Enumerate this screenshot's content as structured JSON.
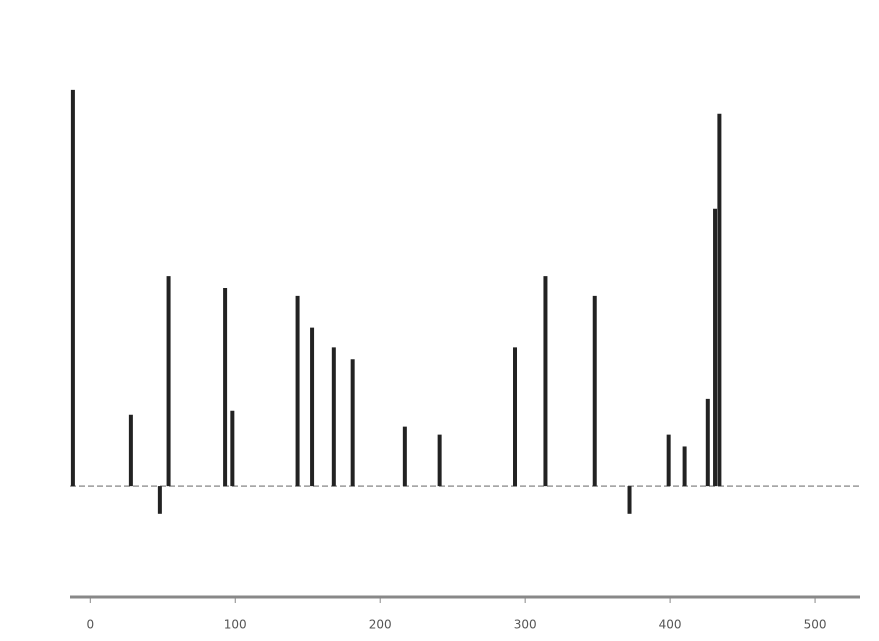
{
  "chart_data": {
    "type": "stem",
    "color": "#222222",
    "x": [
      -12,
      28,
      48,
      54,
      93,
      98,
      143,
      153,
      168,
      181,
      217,
      241,
      293,
      314,
      348,
      372,
      399,
      410,
      426,
      431,
      434
    ],
    "values": [
      100,
      18,
      -7,
      53,
      50,
      19,
      48,
      40,
      35,
      32,
      15,
      13,
      35,
      53,
      48,
      -7,
      13,
      10,
      22,
      70,
      94
    ],
    "xlim": [
      -14,
      531
    ],
    "xticks": [
      0,
      100,
      200,
      300,
      400,
      500
    ],
    "ylim": [
      -28,
      102
    ],
    "grid": false
  }
}
